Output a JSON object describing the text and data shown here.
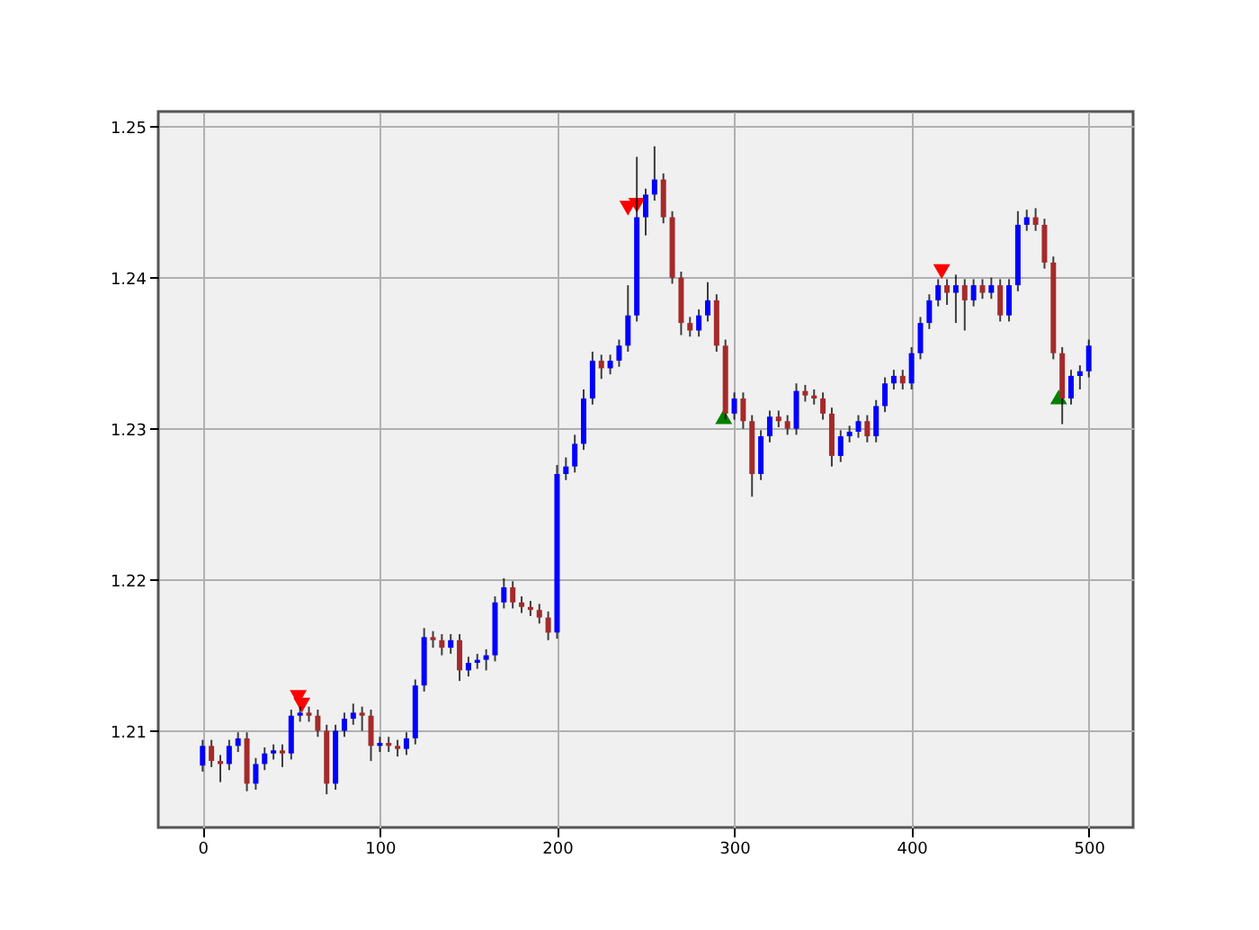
{
  "chart_data": {
    "type": "candlestick",
    "x": [
      0,
      5,
      10,
      15,
      20,
      25,
      30,
      35,
      40,
      45,
      50,
      55,
      60,
      65,
      70,
      75,
      80,
      85,
      90,
      95,
      100,
      105,
      110,
      115,
      120,
      125,
      130,
      135,
      140,
      145,
      150,
      155,
      160,
      165,
      170,
      175,
      180,
      185,
      190,
      195,
      200,
      205,
      210,
      215,
      220,
      225,
      230,
      235,
      240,
      245,
      250,
      255,
      260,
      265,
      270,
      275,
      280,
      285,
      290,
      295,
      300,
      305,
      310,
      315,
      320,
      325,
      330,
      335,
      340,
      345,
      350,
      355,
      360,
      365,
      370,
      375,
      380,
      385,
      390,
      395,
      400,
      405,
      410,
      415,
      420,
      425,
      430,
      435,
      440,
      445,
      450,
      455,
      460,
      465,
      470,
      475,
      480,
      485,
      490,
      495,
      500
    ],
    "ohlc": [
      [
        1.2077,
        1.2094,
        1.2073,
        1.209
      ],
      [
        1.209,
        1.2094,
        1.2076,
        1.208
      ],
      [
        1.208,
        1.2084,
        1.2066,
        1.2078
      ],
      [
        1.2078,
        1.2094,
        1.2074,
        1.209
      ],
      [
        1.209,
        1.2099,
        1.2086,
        1.2095
      ],
      [
        1.2095,
        1.2099,
        1.206,
        1.2065
      ],
      [
        1.2065,
        1.2082,
        1.2061,
        1.2078
      ],
      [
        1.2078,
        1.2089,
        1.2074,
        1.2085
      ],
      [
        1.2085,
        1.2091,
        1.2081,
        1.2087
      ],
      [
        1.2087,
        1.2091,
        1.2076,
        1.2085
      ],
      [
        1.2085,
        1.2114,
        1.2081,
        1.211
      ],
      [
        1.211,
        1.2116,
        1.2106,
        1.2112
      ],
      [
        1.2112,
        1.2116,
        1.2106,
        1.211
      ],
      [
        1.211,
        1.2114,
        1.2096,
        1.21
      ],
      [
        1.21,
        1.2104,
        1.2058,
        1.2065
      ],
      [
        1.2065,
        1.2104,
        1.2061,
        1.21
      ],
      [
        1.21,
        1.2112,
        1.2096,
        1.2108
      ],
      [
        1.2108,
        1.2118,
        1.2104,
        1.2112
      ],
      [
        1.2112,
        1.2116,
        1.21,
        1.211
      ],
      [
        1.211,
        1.2114,
        1.208,
        1.209
      ],
      [
        1.209,
        1.2096,
        1.2086,
        1.2092
      ],
      [
        1.2092,
        1.2096,
        1.2086,
        1.209
      ],
      [
        1.209,
        1.2094,
        1.2083,
        1.2088
      ],
      [
        1.2088,
        1.2099,
        1.2084,
        1.2095
      ],
      [
        1.2095,
        1.2134,
        1.2091,
        1.213
      ],
      [
        1.213,
        1.2168,
        1.2126,
        1.2162
      ],
      [
        1.2162,
        1.2166,
        1.2155,
        1.216
      ],
      [
        1.216,
        1.2164,
        1.215,
        1.2155
      ],
      [
        1.2155,
        1.2164,
        1.2151,
        1.216
      ],
      [
        1.216,
        1.2164,
        1.2133,
        1.214
      ],
      [
        1.214,
        1.2149,
        1.2136,
        1.2145
      ],
      [
        1.2145,
        1.2151,
        1.2141,
        1.2147
      ],
      [
        1.2147,
        1.2154,
        1.214,
        1.215
      ],
      [
        1.215,
        1.2189,
        1.2146,
        1.2185
      ],
      [
        1.2185,
        1.2201,
        1.2181,
        1.2195
      ],
      [
        1.2195,
        1.2199,
        1.2181,
        1.2185
      ],
      [
        1.2185,
        1.2189,
        1.2178,
        1.2182
      ],
      [
        1.2182,
        1.2186,
        1.2176,
        1.218
      ],
      [
        1.218,
        1.2184,
        1.2171,
        1.2175
      ],
      [
        1.2175,
        1.2179,
        1.216,
        1.2165
      ],
      [
        1.2165,
        1.2276,
        1.2161,
        1.227
      ],
      [
        1.227,
        1.2281,
        1.2266,
        1.2275
      ],
      [
        1.2275,
        1.2296,
        1.2271,
        1.229
      ],
      [
        1.229,
        1.2326,
        1.2286,
        1.232
      ],
      [
        1.232,
        1.2351,
        1.2316,
        1.2345
      ],
      [
        1.2345,
        1.2349,
        1.2333,
        1.234
      ],
      [
        1.234,
        1.2349,
        1.2336,
        1.2345
      ],
      [
        1.2345,
        1.2359,
        1.2341,
        1.2355
      ],
      [
        1.2355,
        1.2395,
        1.2351,
        1.2375
      ],
      [
        1.2375,
        1.248,
        1.2371,
        1.244
      ],
      [
        1.244,
        1.2459,
        1.2428,
        1.2455
      ],
      [
        1.2455,
        1.2487,
        1.2451,
        1.2465
      ],
      [
        1.2465,
        1.2469,
        1.2436,
        1.244
      ],
      [
        1.244,
        1.2444,
        1.2396,
        1.24
      ],
      [
        1.24,
        1.2404,
        1.2362,
        1.237
      ],
      [
        1.237,
        1.2374,
        1.2361,
        1.2365
      ],
      [
        1.2365,
        1.2379,
        1.2361,
        1.2375
      ],
      [
        1.2375,
        1.2397,
        1.2371,
        1.2385
      ],
      [
        1.2385,
        1.2389,
        1.2351,
        1.2355
      ],
      [
        1.2355,
        1.2359,
        1.2306,
        1.231
      ],
      [
        1.231,
        1.2324,
        1.2306,
        1.232
      ],
      [
        1.232,
        1.2324,
        1.23,
        1.2305
      ],
      [
        1.2305,
        1.2309,
        1.2255,
        1.227
      ],
      [
        1.227,
        1.2299,
        1.2266,
        1.2295
      ],
      [
        1.2295,
        1.2312,
        1.2291,
        1.2308
      ],
      [
        1.2308,
        1.2312,
        1.2301,
        1.2305
      ],
      [
        1.2305,
        1.2309,
        1.2296,
        1.23
      ],
      [
        1.23,
        1.233,
        1.2296,
        1.2325
      ],
      [
        1.2325,
        1.2329,
        1.2318,
        1.2322
      ],
      [
        1.2322,
        1.2326,
        1.2316,
        1.232
      ],
      [
        1.232,
        1.2324,
        1.2306,
        1.231
      ],
      [
        1.231,
        1.2314,
        1.2275,
        1.2282
      ],
      [
        1.2282,
        1.2299,
        1.2278,
        1.2295
      ],
      [
        1.2295,
        1.2302,
        1.2291,
        1.2298
      ],
      [
        1.2298,
        1.2309,
        1.2294,
        1.2305
      ],
      [
        1.2305,
        1.2309,
        1.2291,
        1.2295
      ],
      [
        1.2295,
        1.2319,
        1.2291,
        1.2315
      ],
      [
        1.2315,
        1.2334,
        1.2311,
        1.233
      ],
      [
        1.233,
        1.2339,
        1.2326,
        1.2335
      ],
      [
        1.2335,
        1.2339,
        1.2326,
        1.233
      ],
      [
        1.233,
        1.2354,
        1.2326,
        1.235
      ],
      [
        1.235,
        1.2374,
        1.2346,
        1.237
      ],
      [
        1.237,
        1.2389,
        1.2366,
        1.2385
      ],
      [
        1.2385,
        1.2399,
        1.2381,
        1.2395
      ],
      [
        1.2395,
        1.2399,
        1.2382,
        1.239
      ],
      [
        1.239,
        1.2402,
        1.237,
        1.2395
      ],
      [
        1.2395,
        1.2399,
        1.2365,
        1.2385
      ],
      [
        1.2385,
        1.2399,
        1.2381,
        1.2395
      ],
      [
        1.2395,
        1.2399,
        1.2386,
        1.239
      ],
      [
        1.239,
        1.24,
        1.2386,
        1.2395
      ],
      [
        1.2395,
        1.2399,
        1.2371,
        1.2375
      ],
      [
        1.2375,
        1.2399,
        1.2371,
        1.2395
      ],
      [
        1.2395,
        1.2444,
        1.2391,
        1.2435
      ],
      [
        1.2435,
        1.2445,
        1.2431,
        1.244
      ],
      [
        1.244,
        1.2446,
        1.2431,
        1.2435
      ],
      [
        1.2435,
        1.2439,
        1.2406,
        1.241
      ],
      [
        1.241,
        1.2414,
        1.2346,
        1.235
      ],
      [
        1.235,
        1.2354,
        1.2303,
        1.232
      ],
      [
        1.232,
        1.2339,
        1.2316,
        1.2335
      ],
      [
        1.2335,
        1.2342,
        1.2326,
        1.2338
      ],
      [
        1.2338,
        1.2359,
        1.2334,
        1.2355
      ]
    ],
    "colors": [
      "#0000ff",
      "#a52a2a",
      "#a52a2a",
      "#0000ff",
      "#0000ff",
      "#a52a2a",
      "#0000ff",
      "#0000ff",
      "#0000ff",
      "#a52a2a",
      "#0000ff",
      "#0000ff",
      "#a52a2a",
      "#a52a2a",
      "#a52a2a",
      "#0000ff",
      "#0000ff",
      "#0000ff",
      "#a52a2a",
      "#a52a2a",
      "#0000ff",
      "#a52a2a",
      "#a52a2a",
      "#0000ff",
      "#0000ff",
      "#0000ff",
      "#a52a2a",
      "#a52a2a",
      "#0000ff",
      "#a52a2a",
      "#0000ff",
      "#0000ff",
      "#0000ff",
      "#0000ff",
      "#0000ff",
      "#a52a2a",
      "#a52a2a",
      "#a52a2a",
      "#a52a2a",
      "#a52a2a",
      "#0000ff",
      "#0000ff",
      "#0000ff",
      "#0000ff",
      "#0000ff",
      "#a52a2a",
      "#0000ff",
      "#0000ff",
      "#0000ff",
      "#0000ff",
      "#0000ff",
      "#0000ff",
      "#a52a2a",
      "#a52a2a",
      "#a52a2a",
      "#a52a2a",
      "#0000ff",
      "#0000ff",
      "#a52a2a",
      "#a52a2a",
      "#0000ff",
      "#a52a2a",
      "#a52a2a",
      "#0000ff",
      "#0000ff",
      "#a52a2a",
      "#a52a2a",
      "#0000ff",
      "#a52a2a",
      "#a52a2a",
      "#a52a2a",
      "#a52a2a",
      "#0000ff",
      "#0000ff",
      "#0000ff",
      "#a52a2a",
      "#0000ff",
      "#0000ff",
      "#0000ff",
      "#a52a2a",
      "#0000ff",
      "#0000ff",
      "#0000ff",
      "#0000ff",
      "#a52a2a",
      "#0000ff",
      "#a52a2a",
      "#0000ff",
      "#a52a2a",
      "#0000ff",
      "#a52a2a",
      "#0000ff",
      "#0000ff",
      "#0000ff",
      "#a52a2a",
      "#a52a2a",
      "#a52a2a",
      "#a52a2a",
      "#0000ff",
      "#0000ff",
      "#0000ff"
    ],
    "series": [
      {
        "type": "scatter",
        "color": "#ff0000",
        "marker": "triangle-down",
        "x": [
          54,
          56,
          240,
          245,
          417
        ],
        "values": [
          1.2122,
          1.2117,
          1.2446,
          1.2448,
          1.2404
        ]
      },
      {
        "type": "scatter",
        "color": "#008000",
        "marker": "triangle-up",
        "x": [
          294,
          483
        ],
        "values": [
          1.2308,
          1.2321
        ]
      }
    ],
    "xlim": [
      -25,
      525
    ],
    "ylim": [
      1.2036,
      1.251
    ],
    "xticks": [
      0,
      100,
      200,
      300,
      400,
      500
    ],
    "yticks": [
      1.21,
      1.22,
      1.23,
      1.24,
      1.25
    ],
    "grid": true
  }
}
